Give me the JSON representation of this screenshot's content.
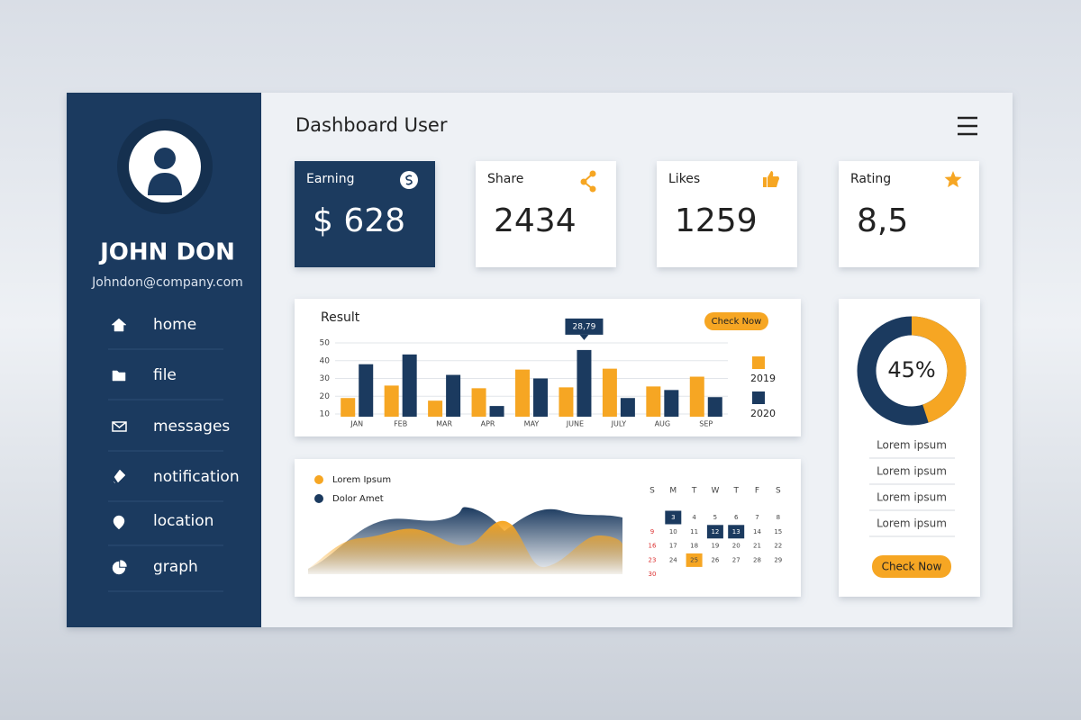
{
  "sidebar": {
    "name": "JOHN DON",
    "email": "Johndon@company.com",
    "menu": [
      "home",
      "file",
      "messages",
      "notification",
      "location",
      "graph"
    ]
  },
  "header": {
    "title": "Dashboard User"
  },
  "cards": [
    {
      "label": "Earning",
      "value": "$ 628"
    },
    {
      "label": "Share",
      "value": "2434"
    },
    {
      "label": "Likes",
      "value": "1259"
    },
    {
      "label": "Rating",
      "value": "8,5"
    }
  ],
  "result_chart": {
    "type": "bar",
    "title": "Result",
    "button": "Check Now",
    "annotation": "28,79",
    "categories": [
      "JAN",
      "FEB",
      "MAR",
      "APR",
      "MAY",
      "JUNE",
      "JULY",
      "AUG",
      "SEP"
    ],
    "series": [
      {
        "name": "2019",
        "color": "#f6a623",
        "values": [
          19,
          26,
          17.5,
          24.5,
          35,
          25,
          35.5,
          25.5,
          31
        ]
      },
      {
        "name": "2020",
        "color": "#1b3a5f",
        "values": [
          38,
          43.5,
          32,
          14.5,
          30,
          46,
          19,
          23.5,
          19.5
        ]
      }
    ],
    "ylim": [
      10,
      50
    ],
    "yticks": [
      10,
      20,
      30,
      40,
      50
    ],
    "grid": true
  },
  "area_chart": {
    "legend": [
      "Lorem Ipsum",
      "Dolor Amet"
    ]
  },
  "calendar": {
    "weekdays": [
      "S",
      "M",
      "T",
      "W",
      "T",
      "F",
      "S"
    ],
    "weeks": [
      [
        null,
        3,
        4,
        5,
        6,
        7,
        8
      ],
      [
        9,
        10,
        11,
        12,
        13,
        14,
        15
      ],
      [
        16,
        17,
        18,
        19,
        20,
        21,
        22
      ],
      [
        23,
        24,
        25,
        26,
        27,
        28,
        29
      ],
      [
        30,
        null,
        null,
        null,
        null,
        null,
        null
      ]
    ],
    "highlight_navy": [
      3,
      12,
      13
    ],
    "highlight_orange": [
      25
    ]
  },
  "donut": {
    "value": 45,
    "label": "45%"
  },
  "side_list": {
    "items": [
      "Lorem ipsum",
      "Lorem ipsum",
      "Lorem ipsum",
      "Lorem ipsum"
    ],
    "button": "Check Now"
  }
}
